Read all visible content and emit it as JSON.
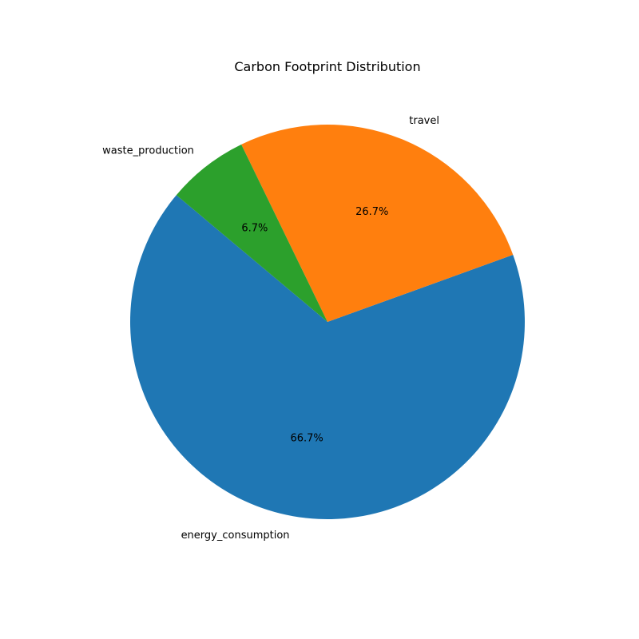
{
  "chart_data": {
    "type": "pie",
    "title": "Carbon Footprint Distribution",
    "start_angle_deg": 140,
    "counterclockwise": true,
    "slices": [
      {
        "label": "energy_consumption",
        "value": 66.7,
        "pct_label": "66.7%",
        "color": "#1f77b4"
      },
      {
        "label": "travel",
        "value": 26.7,
        "pct_label": "26.7%",
        "color": "#ff7f0e"
      },
      {
        "label": "waste_production",
        "value": 6.7,
        "pct_label": "6.7%",
        "color": "#2ca02c"
      }
    ]
  }
}
